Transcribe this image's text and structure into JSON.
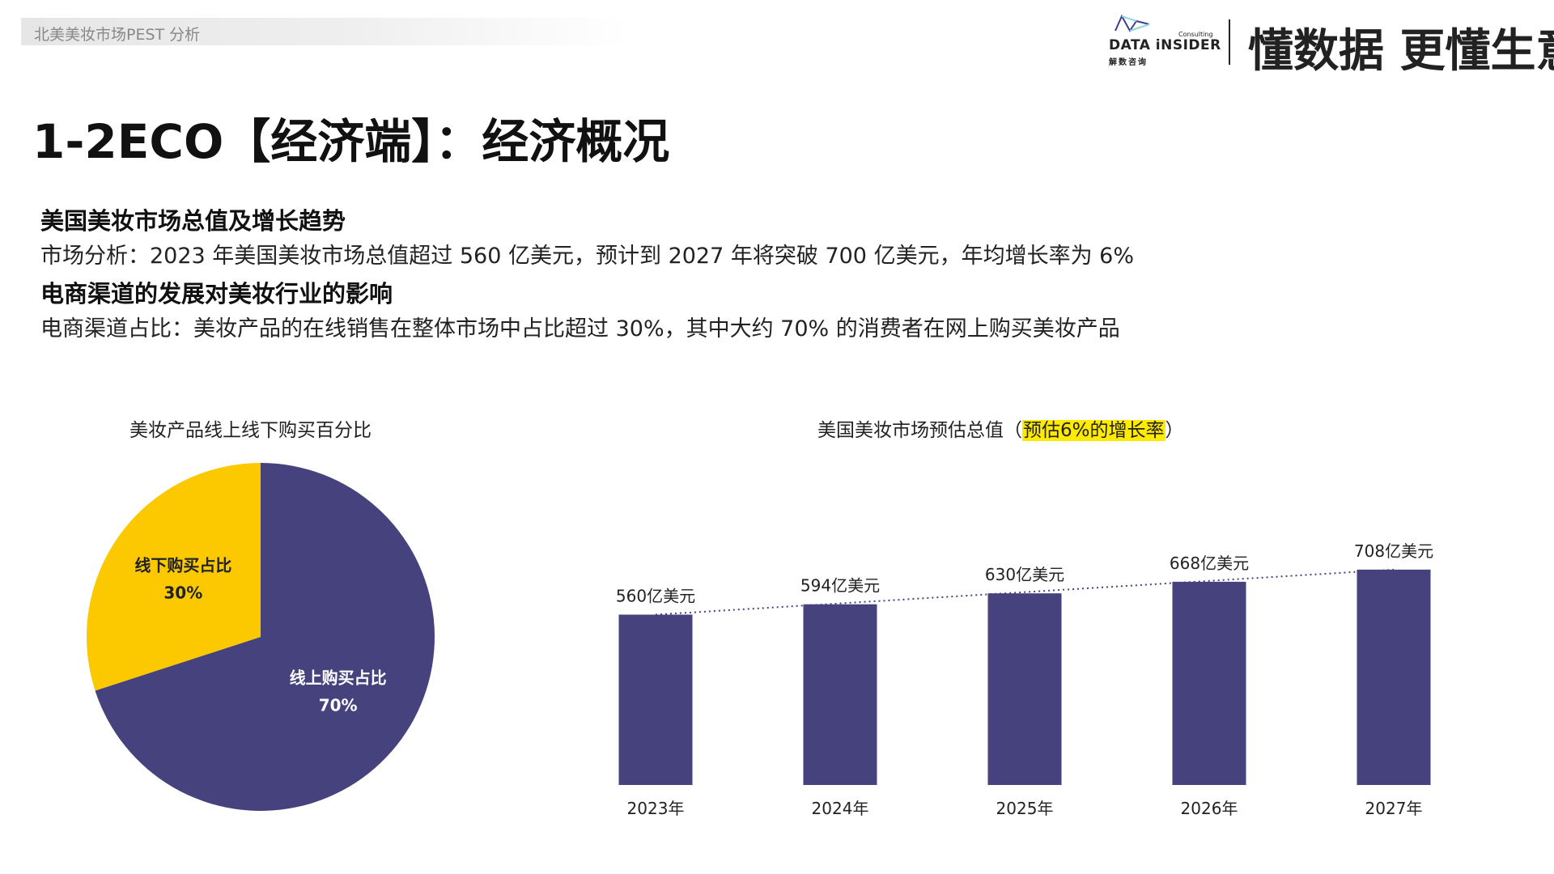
{
  "header": {
    "breadcrumb": "北美美妆市场PEST 分析",
    "brand_consulting": "Consulting",
    "brand_en": "DATA iNSIDER",
    "brand_cn": "解数咨询",
    "slogan": "懂数据 更懂生意"
  },
  "title": "1-2ECO【经济端】：经济概况",
  "sections": [
    {
      "heading": "美国美妆市场总值及增长趋势",
      "text": "市场分析：2023 年美国美妆市场总值超过 560 亿美元，预计到 2027 年将突破 700 亿美元，年均增长率为 6%"
    },
    {
      "heading": "电商渠道的发展对美妆行业的影响",
      "text": "电商渠道占比：美妆产品的在线销售在整体市场中占比超过 30%，其中大约 70% 的消费者在网上购买美妆产品"
    }
  ],
  "colors": {
    "navy": "#46427e",
    "yellow": "#fcc900",
    "highlight": "#ffeb00"
  },
  "chart_data": [
    {
      "type": "pie",
      "title": "美妆产品线上线下购买百分比",
      "slices": [
        {
          "label": "线上购买占比",
          "value": 70,
          "value_label": "70%",
          "color": "#46427e"
        },
        {
          "label": "线下购买占比",
          "value": 30,
          "value_label": "30%",
          "color": "#fcc900"
        }
      ]
    },
    {
      "type": "bar",
      "title_main": "美国美妆市场预估总值（",
      "title_highlight": "预估6%的增长率",
      "title_end": "）",
      "categories": [
        "2023年",
        "2024年",
        "2025年",
        "2026年",
        "2027年"
      ],
      "values": [
        560,
        594,
        630,
        668,
        708
      ],
      "value_labels": [
        "560亿美元",
        "594亿美元",
        "630亿美元",
        "668亿美元",
        "708亿美元"
      ],
      "trendline": "dotted",
      "grid": false,
      "color": "#46427e"
    }
  ]
}
